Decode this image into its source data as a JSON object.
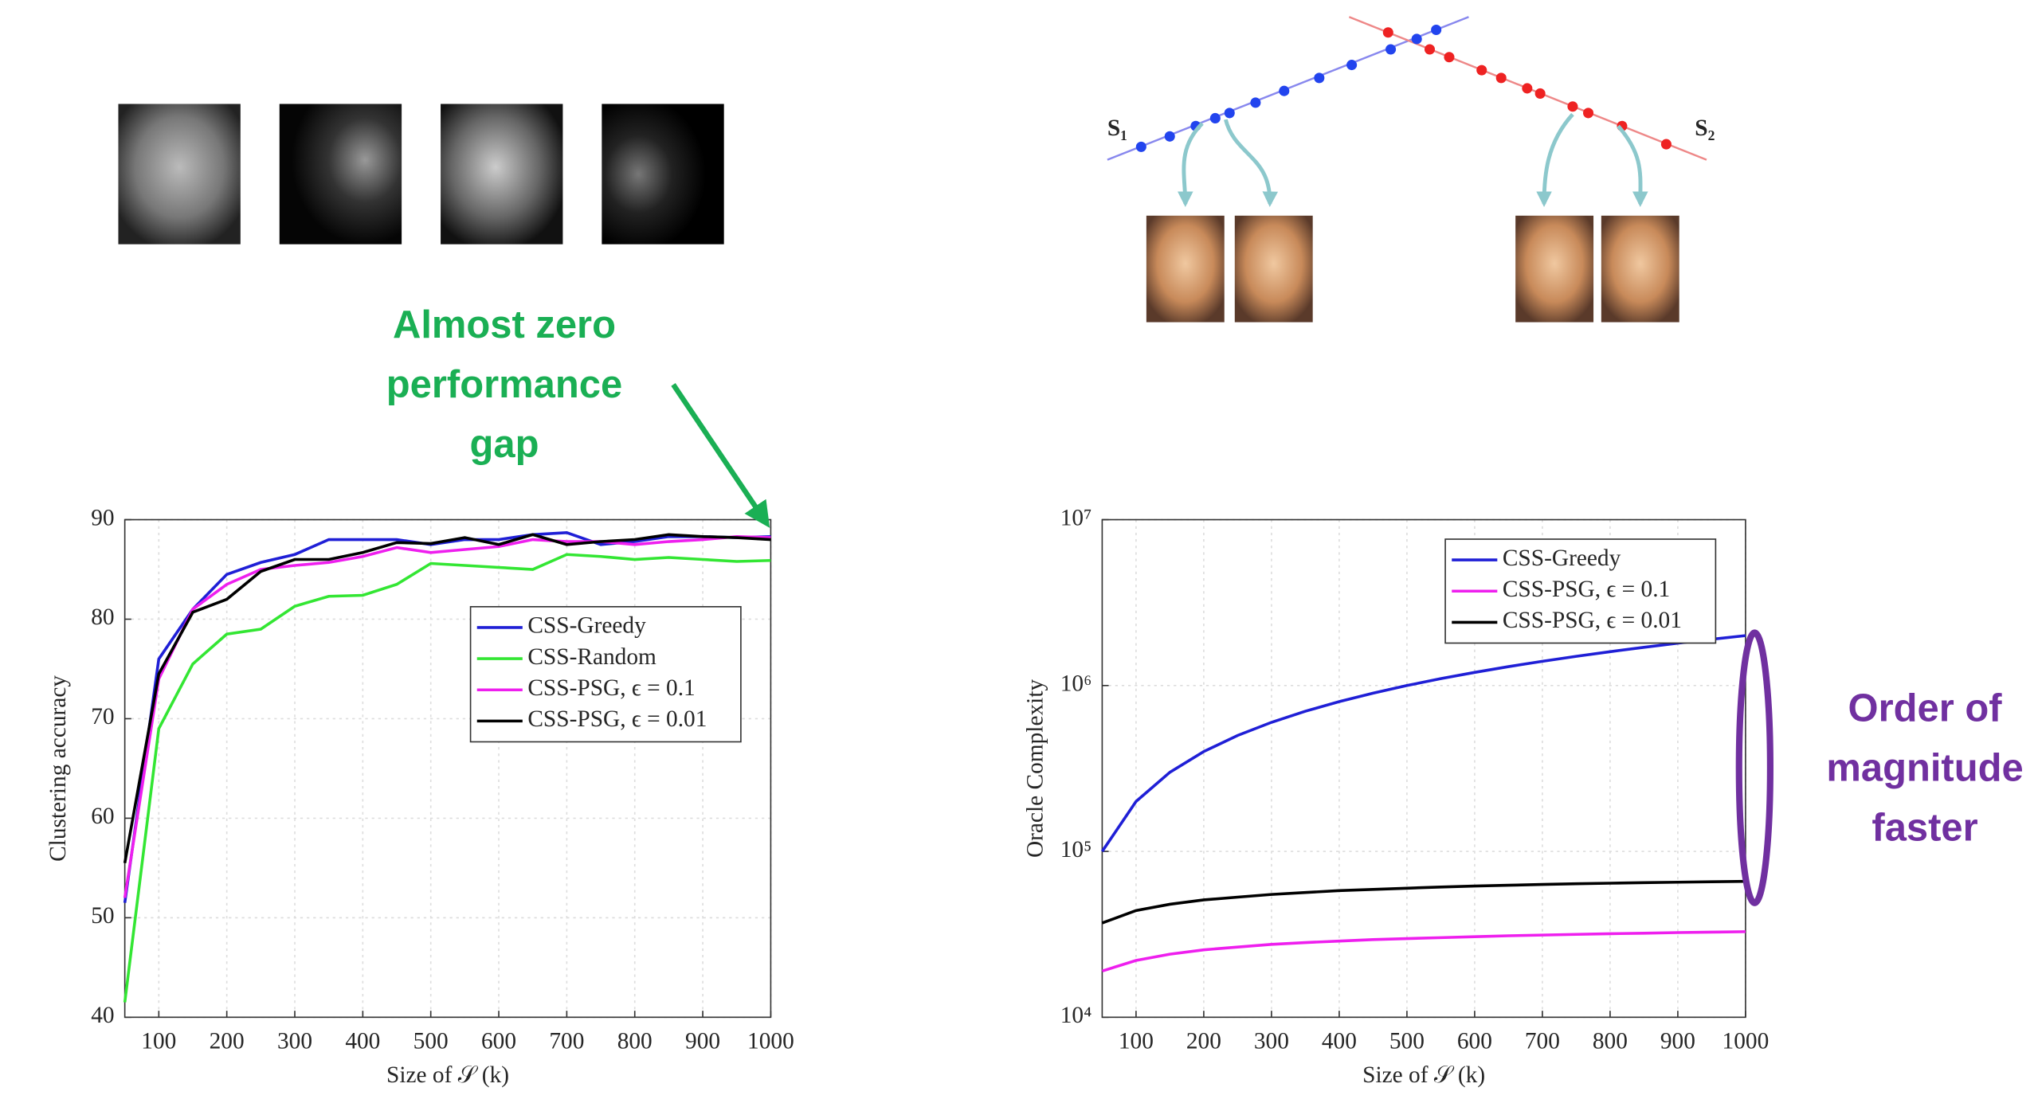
{
  "diagram": {
    "subspace_labels": [
      "S₁",
      "S₂"
    ]
  },
  "chart_data": [
    {
      "type": "line",
      "x_label": "Size of 𝒮 (k)",
      "y_label": "Clustering accuracy",
      "x": [
        50,
        100,
        150,
        200,
        250,
        300,
        350,
        400,
        450,
        500,
        550,
        600,
        650,
        700,
        750,
        800,
        850,
        900,
        950,
        1000
      ],
      "xlim": [
        50,
        1000
      ],
      "xticks": [
        100,
        200,
        300,
        400,
        500,
        600,
        700,
        800,
        900,
        1000
      ],
      "ylim": [
        40,
        90
      ],
      "yticks": [
        40,
        50,
        60,
        70,
        80,
        90
      ],
      "grid": true,
      "log_y": false,
      "legend": "right",
      "series": [
        {
          "name": "CSS-Greedy",
          "color": "#1f1fd6",
          "values": [
            51.5,
            76,
            81,
            84.5,
            85.7,
            86.5,
            88,
            88,
            88,
            87.5,
            88,
            88,
            88.5,
            88.7,
            87.5,
            87.8,
            88.3,
            88.3,
            88.2,
            88.3
          ]
        },
        {
          "name": "CSS-Random",
          "color": "#33e633",
          "values": [
            41.5,
            69,
            75.5,
            78.5,
            79,
            81.3,
            82.3,
            82.4,
            83.5,
            85.6,
            85.4,
            85.2,
            85,
            86.5,
            86.3,
            86,
            86.2,
            86,
            85.8,
            85.9
          ]
        },
        {
          "name": "CSS-PSG, ϵ = 0.1",
          "color": "#ee1fee",
          "values": [
            52,
            74,
            81,
            83.5,
            85,
            85.4,
            85.7,
            86.3,
            87.2,
            86.7,
            87,
            87.3,
            88,
            87.8,
            87.8,
            87.5,
            87.8,
            88,
            88.3,
            88.2
          ]
        },
        {
          "name": "CSS-PSG, ϵ = 0.01",
          "color": "#000000",
          "values": [
            55.5,
            74.5,
            80.7,
            82,
            84.8,
            86,
            86,
            86.7,
            87.7,
            87.6,
            88.2,
            87.5,
            88.5,
            87.5,
            87.8,
            88,
            88.5,
            88.3,
            88.2,
            88
          ]
        }
      ],
      "annotations": [
        "Almost zero",
        "performance",
        "gap"
      ]
    },
    {
      "type": "line",
      "x_label": "Size of 𝒮 (k)",
      "y_label": "Oracle Complexity",
      "x": [
        50,
        100,
        150,
        200,
        250,
        300,
        350,
        400,
        450,
        500,
        550,
        600,
        650,
        700,
        750,
        800,
        850,
        900,
        950,
        1000
      ],
      "xlim": [
        50,
        1000
      ],
      "xticks": [
        100,
        200,
        300,
        400,
        500,
        600,
        700,
        800,
        900,
        1000
      ],
      "ylim": [
        10000,
        10000000
      ],
      "yticks": [
        {
          "value": 10000,
          "label": "10⁴"
        },
        {
          "value": 100000,
          "label": "10⁵"
        },
        {
          "value": 1000000,
          "label": "10⁶"
        },
        {
          "value": 10000000,
          "label": "10⁷"
        }
      ],
      "grid": true,
      "log_y": true,
      "legend": "upper right",
      "series": [
        {
          "name": "CSS-Greedy",
          "color": "#1f1fd6",
          "values": [
            100000,
            200000,
            300000,
            400000,
            500000,
            600000,
            700000,
            800000,
            900000,
            1000000,
            1100000,
            1200000,
            1300000,
            1400000,
            1500000,
            1600000,
            1700000,
            1800000,
            1900000,
            2000000
          ]
        },
        {
          "name": "CSS-PSG, ϵ = 0.1",
          "color": "#ee1fee",
          "values": [
            19000,
            22000,
            24000,
            25500,
            26500,
            27500,
            28200,
            28800,
            29400,
            29800,
            30200,
            30600,
            31000,
            31300,
            31600,
            31900,
            32100,
            32400,
            32600,
            32800
          ]
        },
        {
          "name": "CSS-PSG, ϵ = 0.01",
          "color": "#000000",
          "values": [
            37000,
            44000,
            48000,
            51000,
            53000,
            55000,
            56500,
            58000,
            59000,
            60000,
            61000,
            61800,
            62500,
            63200,
            63800,
            64300,
            64800,
            65200,
            65600,
            66000
          ]
        }
      ],
      "annotations": [
        "Order of",
        "magnitude",
        "faster"
      ]
    }
  ]
}
